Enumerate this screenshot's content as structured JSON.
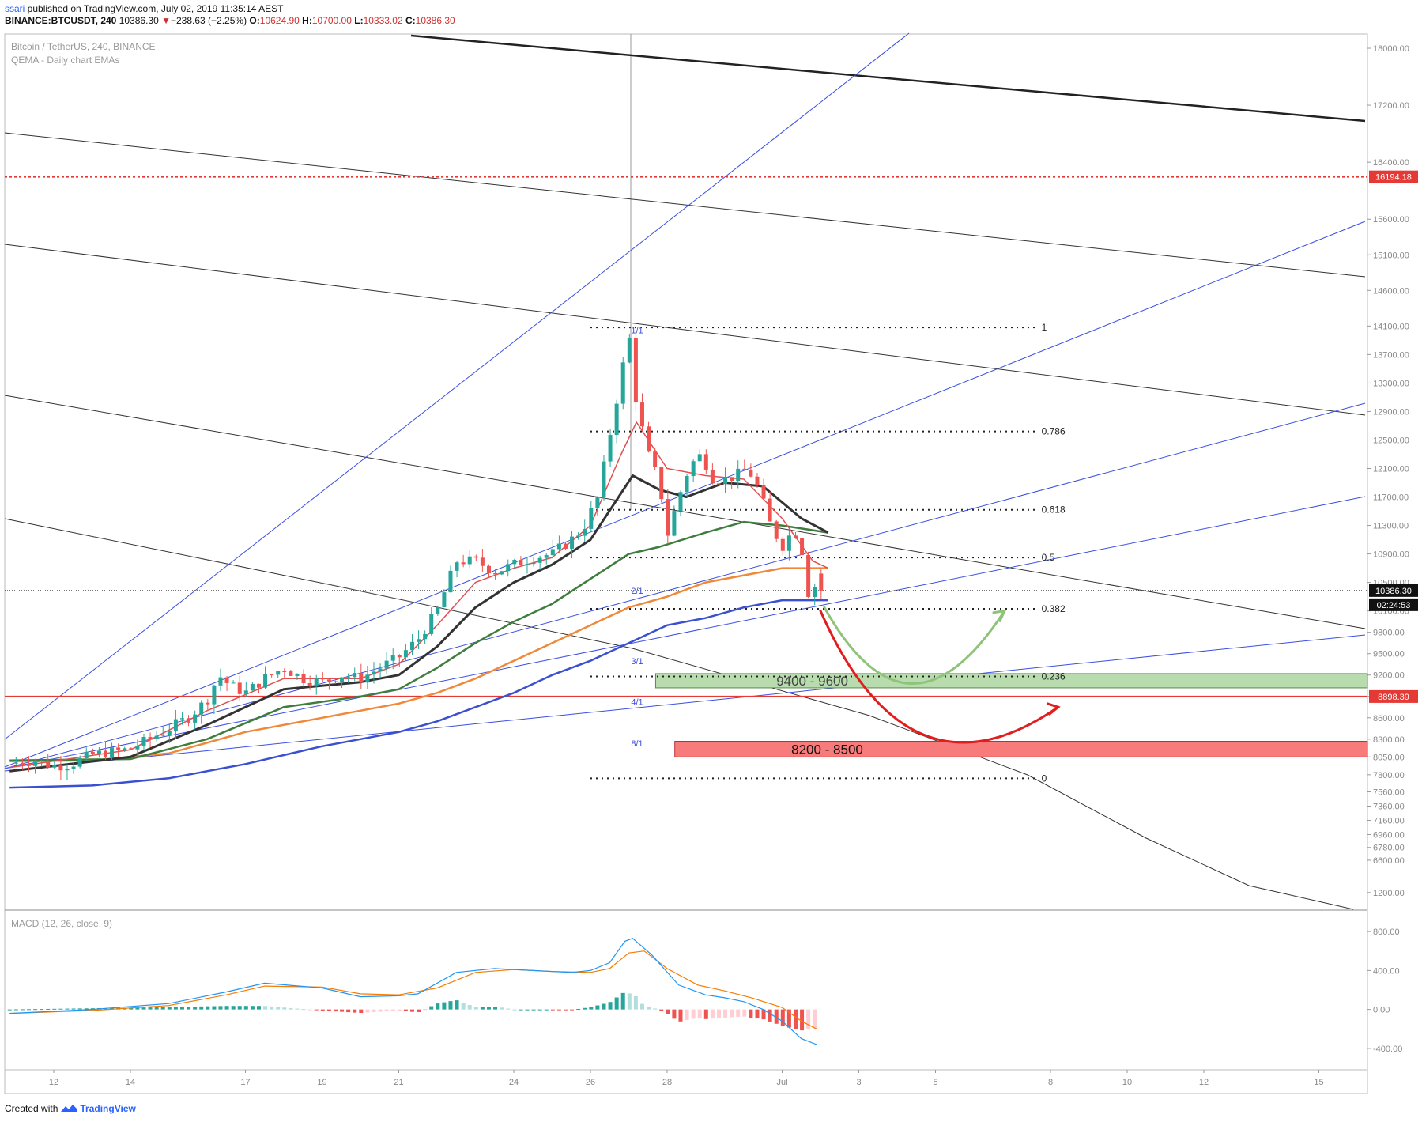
{
  "header": {
    "user": "ssari",
    "published": " published on TradingView.com, July 02, 2019 11:35:14 AEST",
    "symbol": "BINANCE:BTCUSDT, 240",
    "last": "10386.30",
    "change_arrow": "▼",
    "change": "−238.63 (−2.25%)",
    "o_label": "O:",
    "o_value": "10624.90",
    "h_label": "H:",
    "h_value": "10700.00",
    "l_label": "L:",
    "l_value": "10333.02",
    "c_label": "C:",
    "c_value": "10386.30"
  },
  "legend": {
    "title": "Bitcoin / TetherUS, 240, BINANCE",
    "indicator": "QEMA - Daily chart EMAs",
    "macd_title": "MACD (12, 26, close, 9)"
  },
  "footer": {
    "created": "Created with",
    "brand": "TradingView",
    "logo_icon": "tradingview-logo-icon"
  },
  "colors": {
    "up": "#26a69a",
    "down": "#ef5350",
    "ema_fast": "#e05050",
    "ema_black": "#333333",
    "ema_green": "#3e7d3e",
    "ema_orange": "#f0883a",
    "ema_blue": "#3a50d0",
    "fib": "#222222",
    "gann": "#3b4fe0",
    "support_red": "#e53935",
    "zone_green": "#b8dcae",
    "zone_red": "#f77b7b",
    "arrow_green": "#8fc37a",
    "arrow_red": "#e11d1d",
    "macd_line": "#2196f3",
    "signal_line": "#f57c00"
  },
  "chart_data": [
    {
      "type": "candlestick",
      "title": "Bitcoin / TetherUS, 240, BINANCE",
      "y_range": [
        5900,
        18200
      ],
      "y_ticks": [
        "18000.00",
        "17200.00",
        "16400.00",
        "15600.00",
        "15100.00",
        "14600.00",
        "14100.00",
        "13700.00",
        "13300.00",
        "12900.00",
        "12500.00",
        "12100.00",
        "11700.00",
        "11300.00",
        "10900.00",
        "10500.00",
        "10100.00",
        "9800.00",
        "9500.00",
        "9200.00",
        "8900.00",
        "8600.00",
        "8300.00",
        "8050.00",
        "7800.00",
        "7560.00",
        "7360.00",
        "7160.00",
        "6960.00",
        "6780.00",
        "6600.00"
      ],
      "x_ticks": [
        {
          "label": "12",
          "day": 12
        },
        {
          "label": "14",
          "day": 14
        },
        {
          "label": "17",
          "day": 17
        },
        {
          "label": "19",
          "day": 19
        },
        {
          "label": "21",
          "day": 21
        },
        {
          "label": "24",
          "day": 24
        },
        {
          "label": "26",
          "day": 26
        },
        {
          "label": "28",
          "day": 28
        },
        {
          "label": "Jul",
          "day": 31
        },
        {
          "label": "3",
          "day": 33
        },
        {
          "label": "5",
          "day": 35
        },
        {
          "label": "8",
          "day": 38
        },
        {
          "label": "10",
          "day": 40
        },
        {
          "label": "12",
          "day": 42
        },
        {
          "label": "15",
          "day": 45
        }
      ],
      "price_path": [
        [
          10.85,
          7960
        ],
        [
          11.5,
          8000
        ],
        [
          12.0,
          7920
        ],
        [
          12.5,
          7960
        ],
        [
          13.0,
          8080
        ],
        [
          13.5,
          8120
        ],
        [
          14.0,
          8160
        ],
        [
          14.5,
          8300
        ],
        [
          15.0,
          8450
        ],
        [
          15.5,
          8600
        ],
        [
          16.0,
          8850
        ],
        [
          16.3,
          9200
        ],
        [
          16.6,
          9050
        ],
        [
          17.0,
          8950
        ],
        [
          17.5,
          9150
        ],
        [
          18.0,
          9300
        ],
        [
          18.5,
          9150
        ],
        [
          19.0,
          9100
        ],
        [
          19.5,
          9200
        ],
        [
          20.0,
          9150
        ],
        [
          20.5,
          9300
        ],
        [
          21.0,
          9450
        ],
        [
          21.5,
          9700
        ],
        [
          22.0,
          10100
        ],
        [
          22.5,
          10800
        ],
        [
          23.0,
          10800
        ],
        [
          23.5,
          10650
        ],
        [
          24.0,
          10750
        ],
        [
          24.5,
          10850
        ],
        [
          25.0,
          10900
        ],
        [
          25.5,
          11100
        ],
        [
          25.8,
          11250
        ],
        [
          26.2,
          11700
        ],
        [
          26.5,
          12550
        ],
        [
          26.8,
          13400
        ],
        [
          27.0,
          14000
        ],
        [
          27.2,
          13000
        ],
        [
          27.5,
          12300
        ],
        [
          27.8,
          11900
        ],
        [
          28.0,
          11150
        ],
        [
          28.3,
          11700
        ],
        [
          28.6,
          12150
        ],
        [
          28.9,
          12300
        ],
        [
          29.2,
          11950
        ],
        [
          29.5,
          11950
        ],
        [
          29.8,
          12000
        ],
        [
          30.1,
          12100
        ],
        [
          30.4,
          11800
        ],
        [
          30.7,
          11300
        ],
        [
          31.0,
          11000
        ],
        [
          31.3,
          11250
        ],
        [
          31.5,
          11000
        ],
        [
          31.7,
          10300
        ],
        [
          31.9,
          10500
        ],
        [
          32.1,
          10386
        ]
      ],
      "ohlc_last": {
        "open": 10624.9,
        "high": 10700.0,
        "low": 10333.02,
        "close": 10386.3
      },
      "emas": {
        "ema_fast": [
          [
            10.85,
            7900
          ],
          [
            14,
            8150
          ],
          [
            16,
            8700
          ],
          [
            18,
            9150
          ],
          [
            20,
            9150
          ],
          [
            21,
            9350
          ],
          [
            22,
            9900
          ],
          [
            23,
            10500
          ],
          [
            24,
            10700
          ],
          [
            25,
            10850
          ],
          [
            26,
            11300
          ],
          [
            26.8,
            12300
          ],
          [
            27.2,
            12750
          ],
          [
            28,
            12100
          ],
          [
            29,
            12000
          ],
          [
            30,
            11950
          ],
          [
            31,
            11400
          ],
          [
            31.8,
            10800
          ],
          [
            32.2,
            10700
          ]
        ],
        "ema_black": [
          [
            10.85,
            7850
          ],
          [
            14,
            8050
          ],
          [
            16,
            8500
          ],
          [
            18,
            9000
          ],
          [
            20,
            9100
          ],
          [
            21,
            9200
          ],
          [
            22,
            9600
          ],
          [
            23,
            10150
          ],
          [
            24,
            10500
          ],
          [
            25,
            10750
          ],
          [
            26,
            11100
          ],
          [
            27.1,
            12000
          ],
          [
            27.8,
            11800
          ],
          [
            28.5,
            11700
          ],
          [
            29.5,
            11900
          ],
          [
            30.5,
            11850
          ],
          [
            31.5,
            11400
          ],
          [
            32.2,
            11200
          ]
        ],
        "ema_green": [
          [
            10.85,
            8000
          ],
          [
            14,
            8020
          ],
          [
            16,
            8300
          ],
          [
            18,
            8750
          ],
          [
            20,
            8900
          ],
          [
            21,
            9000
          ],
          [
            22,
            9300
          ],
          [
            23,
            9650
          ],
          [
            24,
            9950
          ],
          [
            25,
            10200
          ],
          [
            26,
            10550
          ],
          [
            27,
            10900
          ],
          [
            27.8,
            11000
          ],
          [
            29,
            11200
          ],
          [
            30,
            11350
          ],
          [
            31,
            11300
          ],
          [
            32.2,
            11200
          ]
        ],
        "ema_orange": [
          [
            10.85,
            7990
          ],
          [
            13,
            8000
          ],
          [
            15,
            8100
          ],
          [
            17,
            8400
          ],
          [
            19,
            8600
          ],
          [
            21,
            8800
          ],
          [
            22,
            8950
          ],
          [
            23,
            9150
          ],
          [
            24,
            9400
          ],
          [
            25,
            9650
          ],
          [
            26,
            9900
          ],
          [
            27,
            10150
          ],
          [
            28,
            10300
          ],
          [
            29,
            10500
          ],
          [
            30,
            10600
          ],
          [
            31,
            10700
          ],
          [
            32.2,
            10700
          ]
        ],
        "ema_blue": [
          [
            10.85,
            7620
          ],
          [
            13,
            7650
          ],
          [
            15,
            7750
          ],
          [
            17,
            7950
          ],
          [
            19,
            8200
          ],
          [
            21,
            8400
          ],
          [
            22,
            8550
          ],
          [
            23,
            8750
          ],
          [
            24,
            8950
          ],
          [
            25,
            9200
          ],
          [
            26,
            9400
          ],
          [
            27,
            9650
          ],
          [
            28,
            9900
          ],
          [
            29,
            10000
          ],
          [
            30,
            10150
          ],
          [
            31,
            10250
          ],
          [
            32.2,
            10250
          ]
        ]
      },
      "fibonacci": [
        {
          "label": "1",
          "value": 14080
        },
        {
          "label": "0.786",
          "value": 12620
        },
        {
          "label": "0.618",
          "value": 11520
        },
        {
          "label": "0.5",
          "value": 10850
        },
        {
          "label": "0.382",
          "value": 10130
        },
        {
          "label": "0.236",
          "value": 9180
        },
        {
          "label": "0",
          "value": 7750
        }
      ],
      "fib_range_days": [
        26.0,
        37.6
      ],
      "gann_labels": [
        {
          "label": "1/1",
          "day": 27.1,
          "value": 14000
        },
        {
          "label": "2/1",
          "day": 27.1,
          "value": 10340
        },
        {
          "label": "3/1",
          "day": 27.1,
          "value": 9350
        },
        {
          "label": "4/1",
          "day": 27.1,
          "value": 8780
        },
        {
          "label": "8/1",
          "day": 27.1,
          "value": 8200
        }
      ],
      "zones": [
        {
          "label": "9400 - 9600",
          "from": 9020,
          "to": 9220,
          "day_start": 27.7,
          "color": "green"
        },
        {
          "label": "8200 - 8500",
          "from": 8050,
          "to": 8270,
          "day_start": 28.2,
          "color": "red"
        }
      ],
      "horizontal_lines": [
        {
          "label": "16194.18",
          "value": 16194.18,
          "style": "dashed-red"
        },
        {
          "label": "8898.39",
          "value": 8898.39,
          "style": "solid-red"
        },
        {
          "label": "10386.30",
          "value": 10386.3,
          "style": "dotted-black"
        }
      ],
      "countdown": "02:24:53",
      "scenario_arrows": [
        {
          "color": "green",
          "points": [
            [
              32.1,
              10150
            ],
            [
              34.3,
              9080
            ],
            [
              36.8,
              10100
            ]
          ]
        },
        {
          "color": "red",
          "points": [
            [
              32.0,
              10100
            ],
            [
              34.3,
              8360
            ],
            [
              38.2,
              8750
            ]
          ]
        }
      ]
    },
    {
      "type": "line",
      "title": "MACD (12, 26, close, 9)",
      "y_range": [
        -620,
        1020
      ],
      "y_ticks": [
        "1200.00",
        "800.00",
        "400.00",
        "0.00",
        "-400.00"
      ],
      "series": [
        {
          "name": "MACD",
          "values": [
            [
              10.85,
              -40
            ],
            [
              13,
              0
            ],
            [
              15,
              60
            ],
            [
              16.5,
              180
            ],
            [
              17.5,
              270
            ],
            [
              19,
              220
            ],
            [
              20,
              130
            ],
            [
              21,
              140
            ],
            [
              21.5,
              160
            ],
            [
              22.5,
              380
            ],
            [
              23.5,
              420
            ],
            [
              24.5,
              400
            ],
            [
              25.5,
              380
            ],
            [
              26,
              400
            ],
            [
              26.5,
              480
            ],
            [
              26.9,
              700
            ],
            [
              27.1,
              730
            ],
            [
              27.6,
              560
            ],
            [
              28.3,
              250
            ],
            [
              29,
              150
            ],
            [
              29.5,
              120
            ],
            [
              30,
              80
            ],
            [
              30.5,
              0
            ],
            [
              31,
              -120
            ],
            [
              31.5,
              -300
            ],
            [
              31.9,
              -360
            ]
          ]
        },
        {
          "name": "Signal",
          "values": [
            [
              10.85,
              -40
            ],
            [
              13,
              -10
            ],
            [
              15,
              40
            ],
            [
              16.5,
              150
            ],
            [
              17.5,
              240
            ],
            [
              19,
              230
            ],
            [
              20,
              160
            ],
            [
              21,
              150
            ],
            [
              22,
              220
            ],
            [
              23,
              380
            ],
            [
              24,
              410
            ],
            [
              25,
              390
            ],
            [
              26,
              380
            ],
            [
              26.5,
              420
            ],
            [
              27,
              580
            ],
            [
              27.4,
              600
            ],
            [
              28,
              420
            ],
            [
              28.8,
              250
            ],
            [
              29.5,
              190
            ],
            [
              30.2,
              120
            ],
            [
              31,
              20
            ],
            [
              31.5,
              -120
            ],
            [
              31.9,
              -200
            ]
          ]
        }
      ]
    }
  ]
}
